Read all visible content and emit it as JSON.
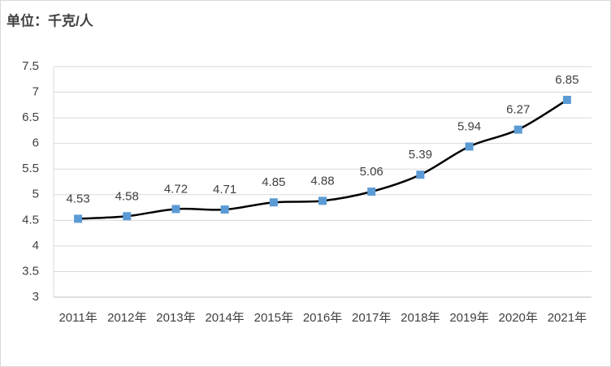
{
  "chart_data": {
    "type": "line",
    "title": "单位：千克/人",
    "categories": [
      "2011年",
      "2012年",
      "2013年",
      "2014年",
      "2015年",
      "2016年",
      "2017年",
      "2018年",
      "2019年",
      "2020年",
      "2021年"
    ],
    "series": [
      {
        "color": "#5b9bd5",
        "values": [
          4.53,
          4.58,
          4.72,
          4.71,
          4.85,
          4.88,
          5.06,
          5.39,
          5.94,
          6.27,
          6.85
        ]
      }
    ],
    "ylim": [
      3,
      7.5
    ],
    "yticks": [
      3,
      3.5,
      4,
      4.5,
      5,
      5.5,
      6,
      6.5,
      7,
      7.5
    ],
    "grid": true
  }
}
